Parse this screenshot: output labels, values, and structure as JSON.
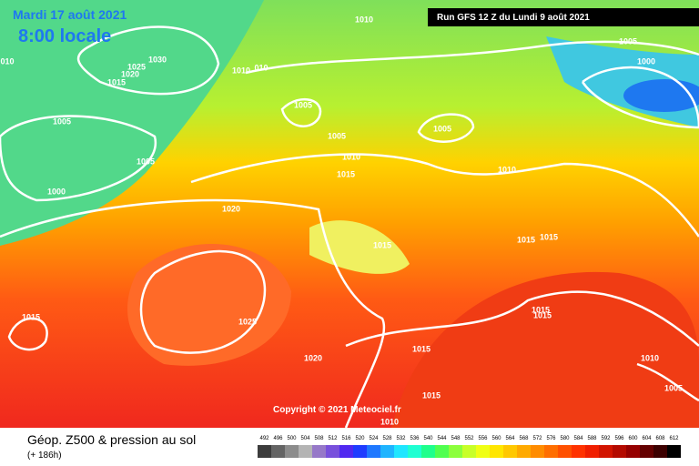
{
  "header": {
    "date": "Mardi 17 août 2021",
    "time": "8:00 locale",
    "run": "Run GFS 12 Z du Lundi 9 août 2021",
    "copyright": "Copyright © 2021 Meteociel.fr"
  },
  "footer": {
    "title": "Géop. Z500 & pression au sol",
    "lead": "(+ 186h)"
  },
  "isobar_labels": [
    "1010",
    "1005",
    "1000",
    "1030",
    "1025",
    "1020",
    "1015",
    "1010",
    "010",
    "010",
    "1005",
    "1005",
    "1005",
    "1005",
    "1005",
    "1000",
    "1010",
    "1015",
    "1010",
    "1020",
    "1015",
    "1015",
    "1015",
    "1015",
    "1025",
    "1015",
    "1015",
    "1020",
    "1015",
    "1010",
    "1005",
    "1015",
    "1010"
  ],
  "scale": [
    492,
    496,
    500,
    504,
    508,
    512,
    516,
    520,
    524,
    528,
    532,
    536,
    540,
    544,
    548,
    552,
    556,
    560,
    564,
    568,
    572,
    576,
    580,
    584,
    588,
    592,
    596,
    600,
    604,
    608,
    612
  ]
}
